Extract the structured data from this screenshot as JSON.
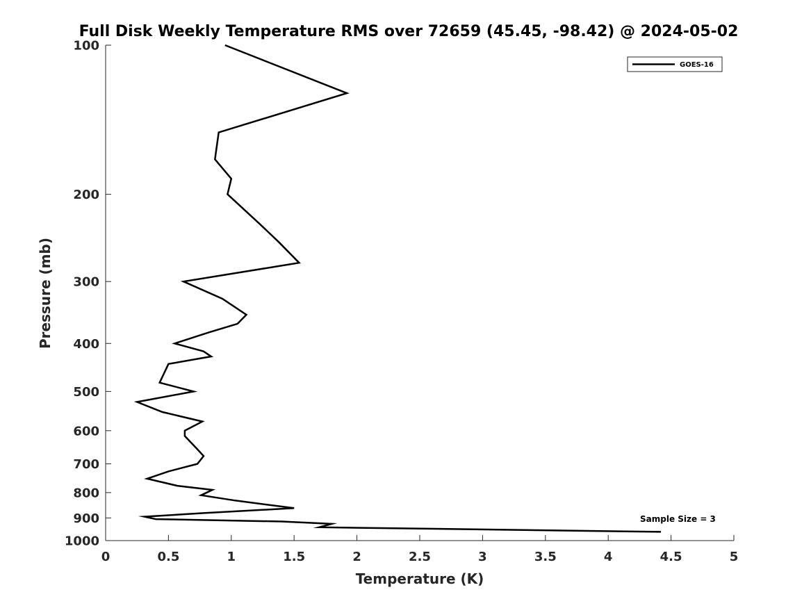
{
  "chart_data": {
    "type": "line",
    "title": "Full Disk Weekly Temperature RMS over 72659 (45.45, -98.42) @ 2024-05-02",
    "xlabel": "Temperature (K)",
    "ylabel": "Pressure (mb)",
    "xlim": [
      0,
      5
    ],
    "ylim": [
      100,
      1000
    ],
    "y_scale": "log",
    "y_reversed": true,
    "x_ticks": [
      "0",
      "0.5",
      "1",
      "1.5",
      "2",
      "2.5",
      "3",
      "3.5",
      "4",
      "4.5",
      "5"
    ],
    "y_ticks": [
      "100",
      "200",
      "300",
      "400",
      "500",
      "600",
      "700",
      "800",
      "900",
      "1000"
    ],
    "grid": false,
    "legend_position": "top-right",
    "color": "#000000",
    "series": [
      {
        "name": "GOES-16",
        "x": [
          0.95,
          1.92,
          0.9,
          0.87,
          1.0,
          0.97,
          1.23,
          1.38,
          1.54,
          0.62,
          0.93,
          1.12,
          1.05,
          0.82,
          0.55,
          0.78,
          0.84,
          0.5,
          0.43,
          0.7,
          0.25,
          0.45,
          0.77,
          0.63,
          0.63,
          0.72,
          0.78,
          0.73,
          0.5,
          0.33,
          0.57,
          0.85,
          0.76,
          1.03,
          1.5,
          0.78,
          0.31,
          0.4,
          1.4,
          1.8,
          1.7,
          4.42
        ],
        "y": [
          100,
          125,
          150,
          170,
          186,
          200,
          230,
          250,
          275,
          300,
          325,
          350,
          365,
          380,
          400,
          415,
          425,
          440,
          480,
          500,
          525,
          550,
          575,
          600,
          615,
          650,
          675,
          700,
          725,
          750,
          775,
          790,
          810,
          830,
          860,
          880,
          895,
          905,
          915,
          925,
          940,
          960
        ]
      }
    ],
    "annotation": "Sample Size = 3"
  }
}
